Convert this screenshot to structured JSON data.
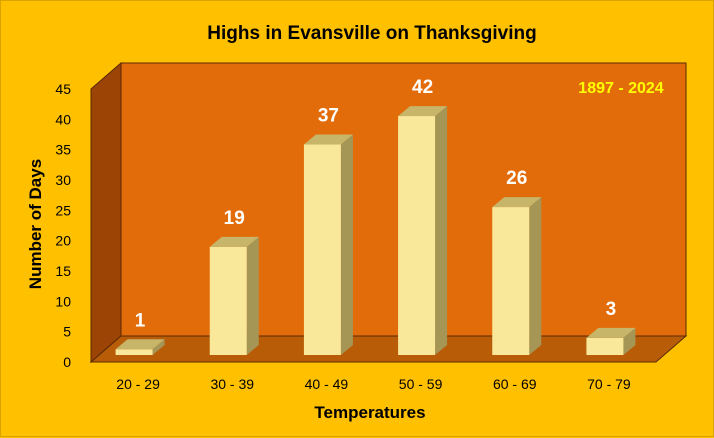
{
  "chart_data": {
    "type": "bar",
    "title": "Highs in Evansville on Thanksgiving",
    "annotation": "1897 - 2024",
    "xlabel": "Temperatures",
    "ylabel": "Number of Days",
    "categories": [
      "20 - 29",
      "30 - 39",
      "40 - 49",
      "50 - 59",
      "60 - 69",
      "70 - 79"
    ],
    "values": [
      1,
      19,
      37,
      42,
      26,
      3
    ],
    "ylim": [
      0,
      45
    ],
    "yticks": [
      "0",
      "5",
      "10",
      "15",
      "20",
      "25",
      "30",
      "35",
      "40",
      "45"
    ],
    "grid": false,
    "legend": "none",
    "style": "3d-column",
    "colors": {
      "background": "#FFC000",
      "plot_wall": "#E36C0A",
      "side_wall": "#9C4306",
      "floor": "#B85C08",
      "bar_front": "#F9E79A",
      "bar_top": "#C7B56A",
      "bar_side": "#A69656",
      "data_label": "#FFFFFF",
      "annotation": "#FFFF00"
    }
  }
}
